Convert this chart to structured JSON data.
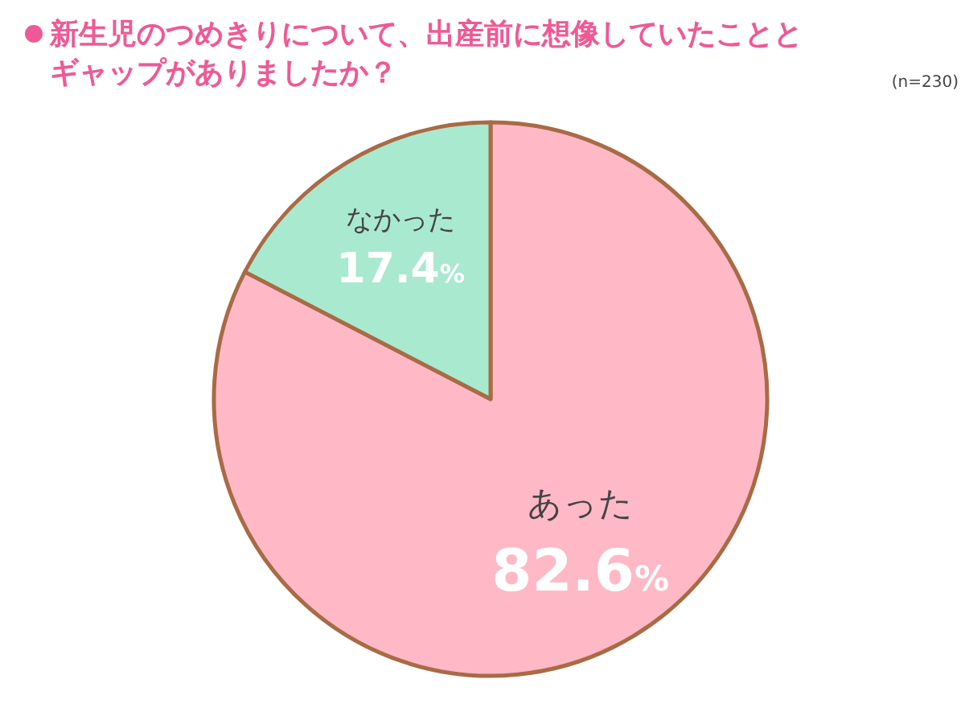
{
  "chart_data": {
    "type": "pie",
    "title": "新生児のつめきりについて、出産前に想像していたこととギャップがありましたか？",
    "categories": [
      "あった",
      "なかった"
    ],
    "values": [
      82.6,
      17.4
    ],
    "value_labels": [
      "82.6%",
      "17.4%"
    ],
    "colors": [
      "#ffb9c6",
      "#a9e9d0"
    ],
    "annotations": [
      "(n=230)"
    ]
  }
}
